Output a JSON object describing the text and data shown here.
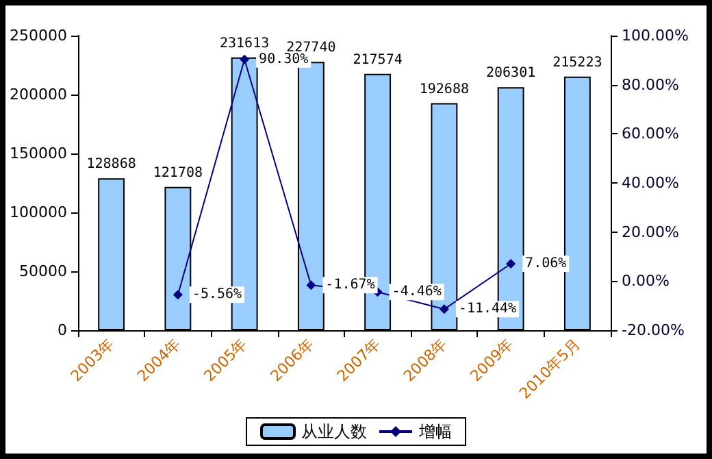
{
  "chart_data": {
    "type": "bar",
    "categories": [
      "2003年",
      "2004年",
      "2005年",
      "2006年",
      "2007年",
      "2008年",
      "2009年",
      "2010年5月"
    ],
    "series": [
      {
        "name": "从业人数",
        "color": "#99ccff",
        "values": [
          128868,
          121708,
          231613,
          227740,
          217574,
          192688,
          206301,
          215223
        ],
        "value_labels": [
          "128868",
          "121708",
          "231613",
          "227740",
          "217574",
          "192688",
          "206301",
          "215223"
        ]
      },
      {
        "name": "增幅",
        "type": "line",
        "axis": "y2",
        "color": "#000080",
        "values": [
          null,
          -5.56,
          90.3,
          -1.67,
          -4.46,
          -11.44,
          7.06,
          null
        ],
        "value_labels": [
          null,
          "-5.56%",
          "90.30%",
          "-1.67%",
          "-4.46%",
          "-11.44%",
          "7.06%",
          null
        ]
      }
    ],
    "ylim": [
      0,
      250000
    ],
    "yticks": [
      0,
      50000,
      100000,
      150000,
      200000,
      250000
    ],
    "y2lim": [
      -20,
      100
    ],
    "y2ticks": [
      {
        "value": -20,
        "label": "-20.00%"
      },
      {
        "value": 0,
        "label": "0.00%"
      },
      {
        "value": 20,
        "label": "20.00%"
      },
      {
        "value": 40,
        "label": "40.00%"
      },
      {
        "value": 60,
        "label": "60.00%"
      },
      {
        "value": 80,
        "label": "80.00%"
      },
      {
        "value": 100,
        "label": "100.00%"
      }
    ],
    "legend": "bottom",
    "grid": false,
    "marker": "diamond",
    "line_style": "solid"
  }
}
